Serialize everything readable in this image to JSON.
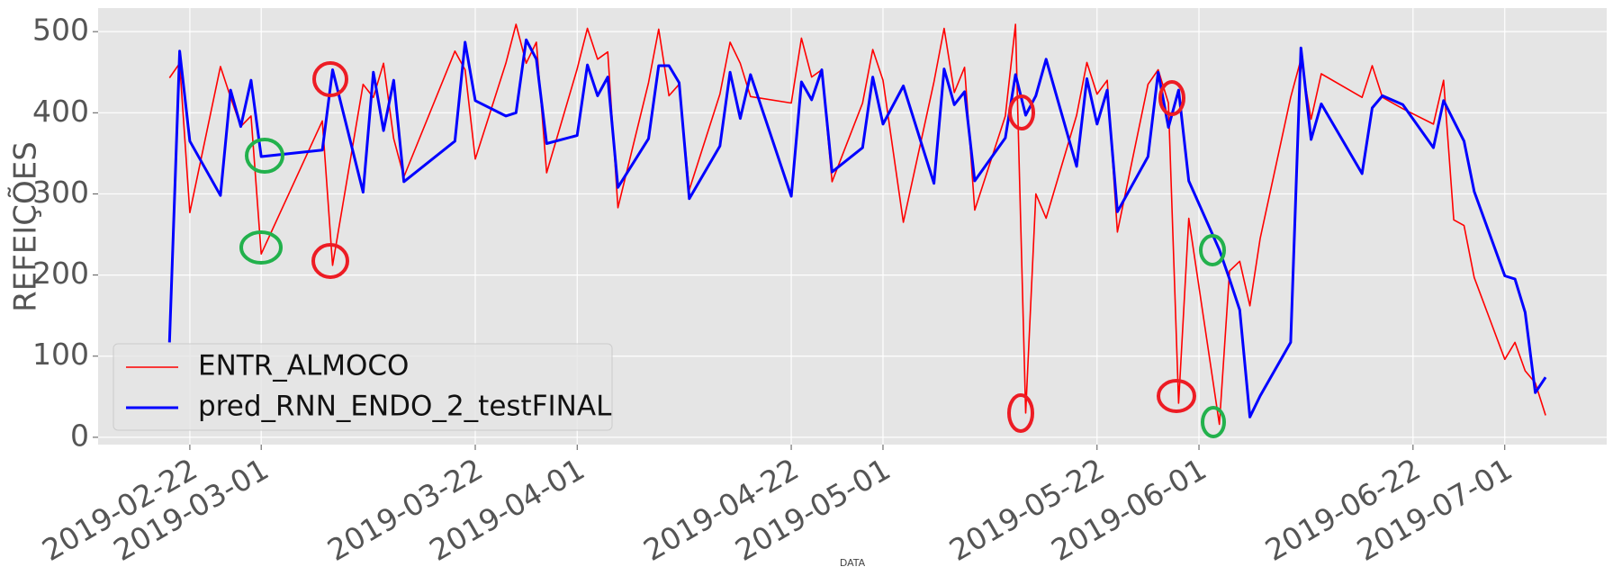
{
  "chart_data": {
    "type": "line",
    "x_label": "DATA",
    "y_label": "REFEIÇÕES",
    "x": [
      "2019-02-20",
      "2019-02-21",
      "2019-02-22",
      "2019-02-25",
      "2019-02-26",
      "2019-02-27",
      "2019-02-28",
      "2019-03-01",
      "2019-03-07",
      "2019-03-08",
      "2019-03-11",
      "2019-03-12",
      "2019-03-13",
      "2019-03-14",
      "2019-03-15",
      "2019-03-20",
      "2019-03-21",
      "2019-03-22",
      "2019-03-25",
      "2019-03-26",
      "2019-03-27",
      "2019-03-28",
      "2019-03-29",
      "2019-04-01",
      "2019-04-02",
      "2019-04-03",
      "2019-04-04",
      "2019-04-05",
      "2019-04-08",
      "2019-04-09",
      "2019-04-10",
      "2019-04-11",
      "2019-04-12",
      "2019-04-15",
      "2019-04-16",
      "2019-04-17",
      "2019-04-18",
      "2019-04-22",
      "2019-04-23",
      "2019-04-24",
      "2019-04-25",
      "2019-04-26",
      "2019-04-29",
      "2019-04-30",
      "2019-05-01",
      "2019-05-03",
      "2019-05-06",
      "2019-05-07",
      "2019-05-08",
      "2019-05-09",
      "2019-05-10",
      "2019-05-13",
      "2019-05-14",
      "2019-05-15",
      "2019-05-16",
      "2019-05-17",
      "2019-05-20",
      "2019-05-21",
      "2019-05-22",
      "2019-05-23",
      "2019-05-24",
      "2019-05-27",
      "2019-05-28",
      "2019-05-29",
      "2019-05-30",
      "2019-05-31",
      "2019-06-03",
      "2019-06-04",
      "2019-06-05",
      "2019-06-06",
      "2019-06-07",
      "2019-06-10",
      "2019-06-11",
      "2019-06-12",
      "2019-06-13",
      "2019-06-17",
      "2019-06-18",
      "2019-06-19",
      "2019-06-21",
      "2019-06-24",
      "2019-06-25",
      "2019-06-26",
      "2019-06-27",
      "2019-06-28",
      "2019-07-01",
      "2019-07-02",
      "2019-07-03",
      "2019-07-04",
      "2019-07-05"
    ],
    "series": [
      {
        "name": "ENTR_ALMOCO",
        "color": "#ff0000",
        "width": 1.6,
        "values": [
          443,
          461,
          277,
          457,
          419,
          383,
          396,
          226,
          390,
          212,
          435,
          419,
          461,
          368,
          321,
          476,
          453,
          343,
          461,
          509,
          461,
          487,
          326,
          454,
          504,
          466,
          475,
          283,
          437,
          503,
          421,
          435,
          305,
          423,
          487,
          461,
          420,
          412,
          492,
          444,
          453,
          315,
          412,
          478,
          440,
          265,
          438,
          504,
          425,
          456,
          280,
          396,
          509,
          30,
          300,
          270,
          397,
          462,
          423,
          440,
          253,
          435,
          453,
          412,
          42,
          270,
          16,
          205,
          217,
          162,
          245,
          419,
          466,
          392,
          448,
          419,
          458,
          419,
          405,
          386,
          440,
          268,
          261,
          197,
          96,
          117,
          82,
          67,
          27
        ]
      },
      {
        "name": "pred_RNN_ENDO_2_testFINAL",
        "color": "#0000ff",
        "width": 3,
        "values": [
          117,
          476,
          365,
          298,
          428,
          383,
          440,
          346,
          354,
          453,
          302,
          450,
          378,
          440,
          315,
          365,
          487,
          415,
          396,
          400,
          490,
          466,
          362,
          372,
          459,
          421,
          444,
          308,
          368,
          458,
          458,
          437,
          294,
          359,
          450,
          393,
          447,
          297,
          438,
          416,
          453,
          327,
          357,
          444,
          386,
          433,
          313,
          454,
          410,
          426,
          316,
          369,
          447,
          397,
          421,
          466,
          334,
          442,
          386,
          428,
          278,
          346,
          450,
          382,
          428,
          316,
          231,
          195,
          157,
          25,
          51,
          117,
          480,
          367,
          411,
          325,
          406,
          421,
          410,
          357,
          415,
          390,
          365,
          303,
          199,
          195,
          154,
          55,
          74
        ]
      }
    ],
    "xlim": [
      "2019-02-13",
      "2019-07-11"
    ],
    "xticks": [
      "2019-02-22",
      "2019-03-01",
      "2019-03-22",
      "2019-04-01",
      "2019-04-22",
      "2019-05-01",
      "2019-05-22",
      "2019-06-01",
      "2019-06-22",
      "2019-07-01"
    ],
    "ylim": [
      -9,
      529
    ],
    "yticks": [
      0,
      100,
      200,
      300,
      400,
      500
    ],
    "grid": true,
    "legend": "lower left"
  }
}
